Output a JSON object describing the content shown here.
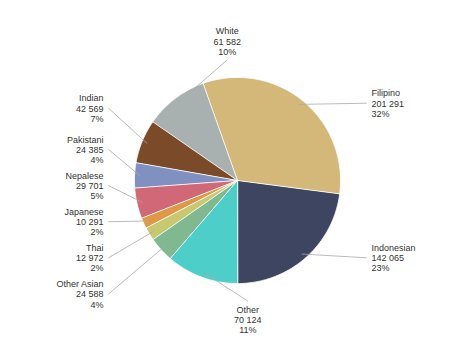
{
  "chart_data": {
    "type": "pie",
    "categories": [
      "Indonesian",
      "Filipino",
      "White",
      "Indian",
      "Pakistani",
      "Nepalese",
      "Japanese",
      "Thai",
      "Other Asian",
      "Other"
    ],
    "values": [
      142065,
      201291,
      61582,
      42569,
      24385,
      29701,
      10291,
      12972,
      24588,
      70124
    ],
    "value_labels": [
      "142 065",
      "201 291",
      "61 582",
      "42 569",
      "24 385",
      "29 701",
      "10 291",
      "12 972",
      "24 588",
      "70 124"
    ],
    "percentages": [
      23,
      32,
      10,
      7,
      4,
      5,
      2,
      2,
      4,
      11
    ],
    "percentage_labels": [
      "23%",
      "32%",
      "10%",
      "7%",
      "4%",
      "5%",
      "2%",
      "2%",
      "4%",
      "11%"
    ],
    "colors": [
      "#3d4560",
      "#d4b87a",
      "#a8b0b0",
      "#7b4a28",
      "#8090c0",
      "#d06878",
      "#e09848",
      "#c8c870",
      "#80b890",
      "#4ecec8"
    ],
    "data_labels": true
  }
}
